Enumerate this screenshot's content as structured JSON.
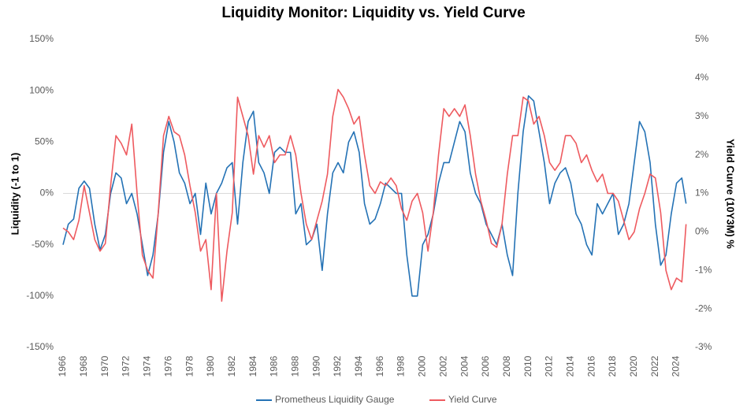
{
  "chart_data": {
    "type": "line",
    "title": "Liquidity Monitor: Liquidity vs. Yield Curve",
    "ylabel": "Liquidity (-1 to 1)",
    "y2label": "Yield Curve (10Y3M) %",
    "x": [
      1966,
      1966.5,
      1967,
      1967.5,
      1968,
      1968.5,
      1969,
      1969.5,
      1970,
      1970.5,
      1971,
      1971.5,
      1972,
      1972.5,
      1973,
      1973.5,
      1974,
      1974.5,
      1975,
      1975.5,
      1976,
      1976.5,
      1977,
      1977.5,
      1978,
      1978.5,
      1979,
      1979.5,
      1980,
      1980.5,
      1981,
      1981.5,
      1982,
      1982.5,
      1983,
      1983.5,
      1984,
      1984.5,
      1985,
      1985.5,
      1986,
      1986.5,
      1987,
      1987.5,
      1988,
      1988.5,
      1989,
      1989.5,
      1990,
      1990.5,
      1991,
      1991.5,
      1992,
      1992.5,
      1993,
      1993.5,
      1994,
      1994.5,
      1995,
      1995.5,
      1996,
      1996.5,
      1997,
      1997.5,
      1998,
      1998.5,
      1999,
      1999.5,
      2000,
      2000.5,
      2001,
      2001.5,
      2002,
      2002.5,
      2003,
      2003.5,
      2004,
      2004.5,
      2005,
      2005.5,
      2006,
      2006.5,
      2007,
      2007.5,
      2008,
      2008.5,
      2009,
      2009.5,
      2010,
      2010.5,
      2011,
      2011.5,
      2012,
      2012.5,
      2013,
      2013.5,
      2014,
      2014.5,
      2015,
      2015.5,
      2016,
      2016.5,
      2017,
      2017.5,
      2018,
      2018.5,
      2019,
      2019.5,
      2020,
      2020.5,
      2021,
      2021.5,
      2022,
      2022.5,
      2023,
      2023.5,
      2024,
      2024.5,
      2024.9
    ],
    "series": [
      {
        "name": "Prometheus Liquidity Gauge",
        "color": "#2472b5",
        "axis": "y",
        "values": [
          -50,
          -30,
          -25,
          5,
          12,
          5,
          -30,
          -55,
          -40,
          0,
          20,
          15,
          -10,
          0,
          -20,
          -50,
          -80,
          -60,
          -20,
          40,
          70,
          50,
          20,
          10,
          -10,
          0,
          -40,
          10,
          -20,
          0,
          10,
          25,
          30,
          -30,
          30,
          70,
          80,
          30,
          20,
          0,
          40,
          45,
          40,
          40,
          -20,
          -10,
          -50,
          -45,
          -30,
          -75,
          -20,
          20,
          30,
          20,
          50,
          60,
          40,
          -10,
          -30,
          -25,
          -10,
          10,
          5,
          0,
          0,
          -60,
          -100,
          -100,
          -50,
          -40,
          -20,
          10,
          30,
          30,
          50,
          70,
          60,
          20,
          0,
          -10,
          -30,
          -40,
          -50,
          -30,
          -60,
          -80,
          0,
          60,
          95,
          90,
          60,
          30,
          -10,
          10,
          20,
          25,
          10,
          -20,
          -30,
          -50,
          -60,
          -10,
          -20,
          -10,
          0,
          -40,
          -30,
          -10,
          30,
          70,
          60,
          30,
          -30,
          -70,
          -60,
          -20,
          10,
          15,
          -10
        ]
      },
      {
        "name": "Yield Curve",
        "color": "#ee5a5f",
        "axis": "y2",
        "values": [
          0.1,
          0,
          -0.2,
          0.3,
          1.2,
          0.5,
          -0.2,
          -0.5,
          -0.3,
          1.2,
          2.5,
          2.3,
          2,
          2.8,
          1,
          -0.6,
          -1,
          -1.2,
          0.5,
          2.5,
          3,
          2.6,
          2.5,
          2,
          1.2,
          0.5,
          -0.5,
          -0.2,
          -1.5,
          1,
          -1.8,
          -0.5,
          0.5,
          3.5,
          3,
          2.5,
          1.5,
          2.5,
          2.2,
          2.5,
          1.8,
          2,
          2,
          2.5,
          2,
          1,
          0.2,
          -0.2,
          0.3,
          0.8,
          1.5,
          3,
          3.7,
          3.5,
          3.2,
          2.8,
          3,
          2,
          1.2,
          1,
          1.3,
          1.2,
          1.4,
          1.2,
          0.6,
          0.3,
          0.8,
          1,
          0.5,
          -0.5,
          0.5,
          2,
          3.2,
          3,
          3.2,
          3,
          3.3,
          2.5,
          1.5,
          0.8,
          0.3,
          -0.3,
          -0.4,
          0.2,
          1.5,
          2.5,
          2.5,
          3.5,
          3.4,
          2.8,
          3,
          2.5,
          1.8,
          1.6,
          1.8,
          2.5,
          2.5,
          2.3,
          1.8,
          2,
          1.6,
          1.3,
          1.5,
          1,
          1,
          0.8,
          0.3,
          -0.2,
          0,
          0.6,
          1,
          1.5,
          1.4,
          0.5,
          -1,
          -1.5,
          -1.2,
          -1.3,
          0.2
        ]
      }
    ],
    "xlim": [
      1966,
      2025
    ],
    "xticks": [
      1966,
      1968,
      1970,
      1972,
      1974,
      1976,
      1978,
      1980,
      1982,
      1984,
      1986,
      1988,
      1990,
      1992,
      1994,
      1996,
      1998,
      2000,
      2002,
      2004,
      2006,
      2008,
      2010,
      2012,
      2014,
      2016,
      2018,
      2020,
      2022,
      2024
    ],
    "ylim": [
      -150,
      150
    ],
    "yticks": [
      {
        "value": -150,
        "label": "-150%"
      },
      {
        "value": -100,
        "label": "-100%"
      },
      {
        "value": -50,
        "label": "-50%"
      },
      {
        "value": 0,
        "label": "0%"
      },
      {
        "value": 50,
        "label": "50%"
      },
      {
        "value": 100,
        "label": "100%"
      },
      {
        "value": 150,
        "label": "150%"
      }
    ],
    "y2lim": [
      -3,
      5
    ],
    "y2ticks": [
      {
        "value": -3,
        "label": "-3%"
      },
      {
        "value": -2,
        "label": "-2%"
      },
      {
        "value": -1,
        "label": "-1%"
      },
      {
        "value": 0,
        "label": "0%"
      },
      {
        "value": 1,
        "label": "1%"
      },
      {
        "value": 2,
        "label": "2%"
      },
      {
        "value": 3,
        "label": "3%"
      },
      {
        "value": 4,
        "label": "4%"
      },
      {
        "value": 5,
        "label": "5%"
      }
    ],
    "legend": "bottom"
  }
}
